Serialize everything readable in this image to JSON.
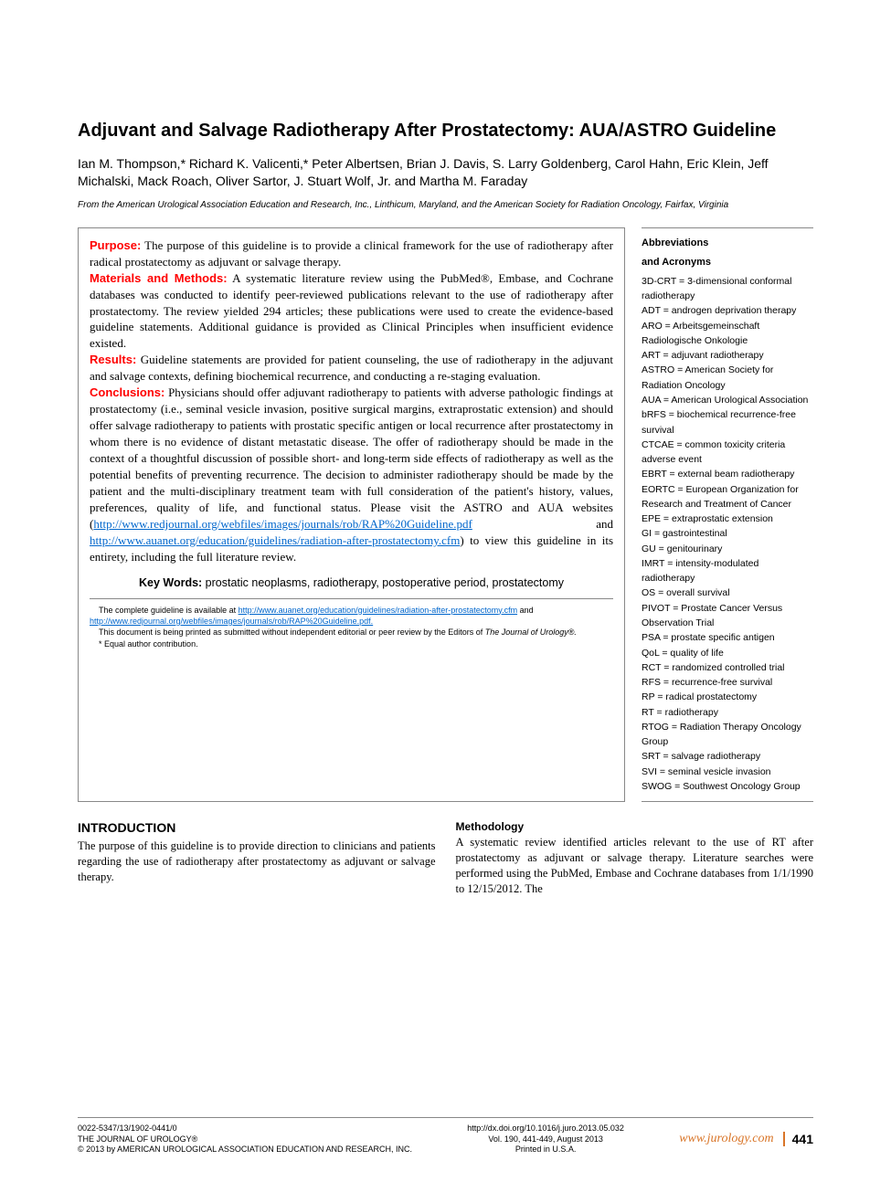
{
  "title": "Adjuvant and Salvage Radiotherapy After Prostatectomy: AUA/ASTRO Guideline",
  "authors": "Ian M. Thompson,* Richard K. Valicenti,* Peter Albertsen, Brian J. Davis, S. Larry Goldenberg, Carol Hahn, Eric Klein, Jeff Michalski, Mack Roach, Oliver Sartor, J. Stuart Wolf, Jr. and Martha M. Faraday",
  "affiliation": "From the American Urological Association Education and Research, Inc., Linthicum, Maryland, and the American Society for Radiation Oncology, Fairfax, Virginia",
  "abstract": {
    "purpose_label": "Purpose:",
    "purpose": " The purpose of this guideline is to provide a clinical framework for the use of radiotherapy after radical prostatectomy as adjuvant or salvage therapy.",
    "methods_label": "Materials and Methods:",
    "methods": " A systematic literature review using the PubMed®, Embase, and Cochrane databases was conducted to identify peer-reviewed publications relevant to the use of radiotherapy after prostatectomy. The review yielded 294 articles; these publications were used to create the evidence-based guideline statements. Additional guidance is provided as Clinical Principles when insufficient evidence existed.",
    "results_label": "Results:",
    "results": " Guideline statements are provided for patient counseling, the use of radiotherapy in the adjuvant and salvage contexts, defining biochemical recurrence, and conducting a re-staging evaluation.",
    "conclusions_label": "Conclusions:",
    "conclusions_1": " Physicians should offer adjuvant radiotherapy to patients with adverse pathologic findings at prostatectomy (i.e., seminal vesicle invasion, positive surgical margins, extraprostatic extension) and should offer salvage radiotherapy to patients with prostatic specific antigen or local recurrence after prostatectomy in whom there is no evidence of distant metastatic disease. The offer of radiotherapy should be made in the context of a thoughtful discussion of possible short- and long-term side effects of radiotherapy as well as the potential benefits of preventing recurrence. The decision to administer radiotherapy should be made by the patient and the multi-disciplinary treatment team with full consideration of the patient's history, values, preferences, quality of life, and functional status. Please visit the ASTRO and AUA websites (",
    "link1": "http://www.redjournal.org/webfiles/images/journals/rob/RAP%20Guideline.pdf",
    "and": " and ",
    "link2": "http://www.auanet.org/education/guidelines/radiation-after-prostatectomy.cfm",
    "conclusions_2": ") to view this guideline in its entirety, including the full literature review."
  },
  "keywords_label": "Key Words:",
  "keywords": " prostatic neoplasms, radiotherapy, postoperative period, prostatectomy",
  "footnotes": {
    "f1_a": "The complete guideline is available at ",
    "f1_link1": "http://www.auanet.org/education/guidelines/radiation-after-prostatectomy.cfm",
    "f1_b": " and ",
    "f1_link2": "http://www.redjournal.org/webfiles/images/journals/rob/RAP%20Guideline.pdf.",
    "f2_a": "This document is being printed as submitted without independent editorial or peer review by the Editors of ",
    "f2_b": "The Journal of Urology®.",
    "f3": "* Equal author contribution."
  },
  "sidebar": {
    "heading1": "Abbreviations",
    "heading2": "and Acronyms",
    "items": [
      "3D-CRT = 3-dimensional conformal radiotherapy",
      "ADT = androgen deprivation therapy",
      "ARO = Arbeitsgemeinschaft Radiologische Onkologie",
      "ART = adjuvant radiotherapy",
      "ASTRO = American Society for Radiation Oncology",
      "AUA = American Urological Association",
      "bRFS = biochemical recurrence-free survival",
      "CTCAE = common toxicity criteria adverse event",
      "EBRT = external beam radiotherapy",
      "EORTC = European Organization for Research and Treatment of Cancer",
      "EPE = extraprostatic extension",
      "GI = gastrointestinal",
      "GU = genitourinary",
      "IMRT = intensity-modulated radiotherapy",
      "OS = overall survival",
      "PIVOT = Prostate Cancer Versus Observation Trial",
      "PSA = prostate specific antigen",
      "QoL = quality of life",
      "RCT = randomized controlled trial",
      "RFS = recurrence-free survival",
      "RP = radical prostatectomy",
      "RT = radiotherapy",
      "RTOG = Radiation Therapy Oncology Group",
      "SRT = salvage radiotherapy",
      "SVI = seminal vesicle invasion",
      "SWOG = Southwest Oncology Group"
    ]
  },
  "intro": {
    "heading": "INTRODUCTION",
    "text": "The purpose of this guideline is to provide direction to clinicians and patients regarding the use of radiotherapy after prostatectomy as adjuvant or salvage therapy."
  },
  "methodology": {
    "heading": "Methodology",
    "text": "A systematic review identified articles relevant to the use of RT after prostatectomy as adjuvant or salvage therapy. Literature searches were performed using the PubMed, Embase and Cochrane databases from 1/1/1990 to 12/15/2012. The"
  },
  "footer": {
    "left1": "0022-5347/13/1902-0441/0",
    "left2": "THE JOURNAL OF UROLOGY®",
    "left3": "© 2013 by AMERICAN UROLOGICAL ASSOCIATION EDUCATION AND RESEARCH, INC.",
    "mid1": "http://dx.doi.org/10.1016/j.juro.2013.05.032",
    "mid2": "Vol. 190, 441-449, August 2013",
    "mid3": "Printed in U.S.A.",
    "site": "www.jurology.com",
    "page": "441"
  },
  "colors": {
    "section_label": "#ff0000",
    "link": "#0066cc",
    "accent": "#d97528",
    "border": "#888888",
    "text": "#000000",
    "bg": "#ffffff"
  }
}
